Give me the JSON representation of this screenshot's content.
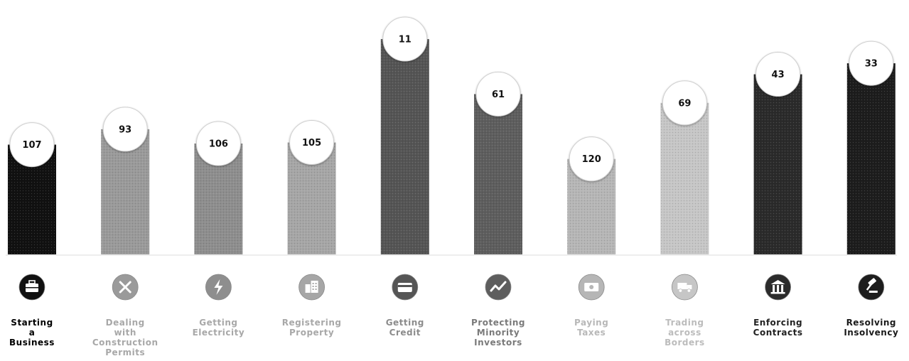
{
  "chart_data": {
    "type": "bar",
    "categories": [
      "Starting a Business",
      "Dealing with Construction Permits",
      "Getting Electricity",
      "Registering Property",
      "Getting Credit",
      "Protecting Minority Investors",
      "Paying Taxes",
      "Trading across Borders",
      "Enforcing Contracts",
      "Resolving Insolvency"
    ],
    "label_lines": [
      [
        "Starting",
        "a",
        "Business"
      ],
      [
        "Dealing",
        "with",
        "Construction",
        "Permits"
      ],
      [
        "Getting",
        "Electricity"
      ],
      [
        "Registering",
        "Property"
      ],
      [
        "Getting",
        "Credit"
      ],
      [
        "Protecting",
        "Minority",
        "Investors"
      ],
      [
        "Paying",
        "Taxes"
      ],
      [
        "Trading",
        "across",
        "Borders"
      ],
      [
        "Enforcing",
        "Contracts"
      ],
      [
        "Resolving",
        "Insolvency"
      ]
    ],
    "values": [
      107,
      93,
      106,
      105,
      11,
      61,
      120,
      69,
      43,
      33
    ],
    "bar_colors": [
      "#111111",
      "#9a9a9a",
      "#8e8e8e",
      "#a6a6a6",
      "#555555",
      "#5e5e5e",
      "#b6b6b6",
      "#c6c6c6",
      "#2b2b2b",
      "#1d1d1d"
    ],
    "label_colors": [
      "#000000",
      "#a8a8a8",
      "#a8a8a8",
      "#a8a8a8",
      "#8c8c8c",
      "#7a7a7a",
      "#b8b8b8",
      "#bcbcbc",
      "#222222",
      "#1a1a1a"
    ],
    "icons": [
      "briefcase-icon",
      "tools-icon",
      "lightning-icon",
      "buildings-icon",
      "credit-card-icon",
      "trend-icon",
      "money-icon",
      "truck-icon",
      "courthouse-icon",
      "gavel-icon"
    ],
    "value_scale": "rank (lower rank shown as taller bar)",
    "rank_range": [
      0,
      190
    ],
    "grid": false,
    "legend": "none"
  }
}
